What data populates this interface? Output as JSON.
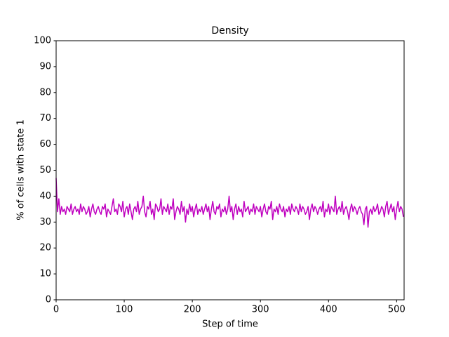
{
  "chart_data": {
    "type": "line",
    "title": "Density",
    "x_label": "Step of time",
    "y_label": "% of cells with state 1",
    "color": "#bf00bf",
    "xlim": [
      0,
      511
    ],
    "ylim": [
      0,
      100
    ],
    "xticks": [
      0,
      100,
      200,
      300,
      400,
      500
    ],
    "yticks": [
      0,
      10,
      20,
      30,
      40,
      50,
      60,
      70,
      80,
      90,
      100
    ],
    "x": [
      0,
      2,
      4,
      6,
      8,
      10,
      12,
      14,
      16,
      18,
      20,
      22,
      24,
      26,
      28,
      30,
      32,
      34,
      36,
      38,
      40,
      42,
      44,
      46,
      48,
      50,
      52,
      54,
      56,
      58,
      60,
      62,
      64,
      66,
      68,
      70,
      72,
      74,
      76,
      78,
      80,
      82,
      84,
      86,
      88,
      90,
      92,
      94,
      96,
      98,
      100,
      102,
      104,
      106,
      108,
      110,
      112,
      114,
      116,
      118,
      120,
      122,
      124,
      126,
      128,
      130,
      132,
      134,
      136,
      138,
      140,
      142,
      144,
      146,
      148,
      150,
      152,
      154,
      156,
      158,
      160,
      162,
      164,
      166,
      168,
      170,
      172,
      174,
      176,
      178,
      180,
      182,
      184,
      186,
      188,
      190,
      192,
      194,
      196,
      198,
      200,
      202,
      204,
      206,
      208,
      210,
      212,
      214,
      216,
      218,
      220,
      222,
      224,
      226,
      228,
      230,
      232,
      234,
      236,
      238,
      240,
      242,
      244,
      246,
      248,
      250,
      252,
      254,
      256,
      258,
      260,
      262,
      264,
      266,
      268,
      270,
      272,
      274,
      276,
      278,
      280,
      282,
      284,
      286,
      288,
      290,
      292,
      294,
      296,
      298,
      300,
      302,
      304,
      306,
      308,
      310,
      312,
      314,
      316,
      318,
      320,
      322,
      324,
      326,
      328,
      330,
      332,
      334,
      336,
      338,
      340,
      342,
      344,
      346,
      348,
      350,
      352,
      354,
      356,
      358,
      360,
      362,
      364,
      366,
      368,
      370,
      372,
      374,
      376,
      378,
      380,
      382,
      384,
      386,
      388,
      390,
      392,
      394,
      396,
      398,
      400,
      402,
      404,
      406,
      408,
      410,
      412,
      414,
      416,
      418,
      420,
      422,
      424,
      426,
      428,
      430,
      432,
      434,
      436,
      438,
      440,
      442,
      444,
      446,
      448,
      450,
      452,
      454,
      456,
      458,
      460,
      462,
      464,
      466,
      468,
      470,
      472,
      474,
      476,
      478,
      480,
      482,
      484,
      486,
      488,
      490,
      492,
      494,
      496,
      498,
      500,
      502,
      504,
      506,
      508,
      510
    ],
    "values": [
      47,
      34,
      39,
      33,
      36,
      34,
      35,
      33,
      36,
      35,
      34,
      37,
      33,
      35,
      36,
      34,
      35,
      33,
      37,
      34,
      36,
      35,
      33,
      34,
      36,
      32,
      35,
      37,
      34,
      33,
      35,
      36,
      34,
      33,
      36,
      35,
      37,
      32,
      35,
      34,
      33,
      36,
      39,
      34,
      35,
      33,
      37,
      36,
      34,
      38,
      32,
      35,
      36,
      33,
      37,
      34,
      31,
      35,
      36,
      34,
      38,
      33,
      35,
      36,
      40,
      34,
      32,
      36,
      35,
      38,
      33,
      35,
      31,
      37,
      36,
      34,
      35,
      39,
      33,
      36,
      35,
      34,
      37,
      33,
      36,
      35,
      39,
      31,
      34,
      36,
      35,
      33,
      38,
      34,
      36,
      30,
      35,
      33,
      37,
      34,
      36,
      32,
      35,
      37,
      33,
      35,
      34,
      36,
      33,
      35,
      37,
      34,
      36,
      31,
      35,
      38,
      34,
      33,
      36,
      35,
      37,
      32,
      35,
      34,
      36,
      33,
      35,
      40,
      34,
      36,
      31,
      35,
      37,
      33,
      36,
      34,
      35,
      32,
      38,
      34,
      35,
      36,
      33,
      35,
      34,
      37,
      33,
      36,
      35,
      34,
      36,
      32,
      35,
      37,
      34,
      33,
      36,
      35,
      38,
      31,
      35,
      34,
      36,
      33,
      37,
      35,
      34,
      36,
      32,
      35,
      34,
      36,
      33,
      37,
      35,
      34,
      36,
      35,
      33,
      37,
      34,
      36,
      35,
      33,
      34,
      36,
      31,
      35,
      37,
      34,
      36,
      35,
      33,
      35,
      36,
      34,
      38,
      32,
      35,
      34,
      37,
      33,
      36,
      35,
      34,
      40,
      33,
      35,
      36,
      34,
      38,
      33,
      35,
      36,
      34,
      31,
      35,
      37,
      34,
      36,
      35,
      33,
      35,
      36,
      34,
      33,
      29,
      35,
      36,
      28,
      34,
      35,
      33,
      36,
      34,
      35,
      37,
      33,
      34,
      36,
      35,
      32,
      36,
      38,
      33,
      35,
      37,
      34,
      36,
      31,
      35,
      38,
      34,
      36,
      35,
      32
    ]
  }
}
